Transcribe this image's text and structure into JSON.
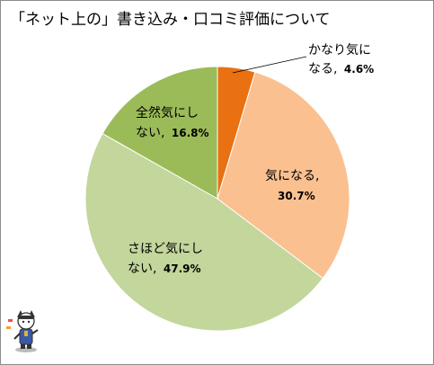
{
  "chart_data": {
    "type": "pie",
    "title": "「ネット上の」書き込み・口コミ評価について",
    "start_angle_deg": 0,
    "direction": "clockwise",
    "slices": [
      {
        "label_line1": "かなり気に",
        "label_line2": "なる,",
        "value": 4.6,
        "value_text": "4.6%",
        "color": "#e97111"
      },
      {
        "label_line1": "気になる,",
        "label_line2": "",
        "value": 30.7,
        "value_text": "30.7%",
        "color": "#fac090"
      },
      {
        "label_line1": "さほど気にし",
        "label_line2": "ない,",
        "value": 47.9,
        "value_text": "47.9%",
        "color": "#c3d69b"
      },
      {
        "label_line1": "全然気にし",
        "label_line2": "ない,",
        "value": 16.8,
        "value_text": "16.8%",
        "color": "#9bbb59"
      }
    ],
    "legend": "none",
    "border_color": "#8c8c8c"
  },
  "mascot": {
    "icon": "mascot-character-icon"
  }
}
